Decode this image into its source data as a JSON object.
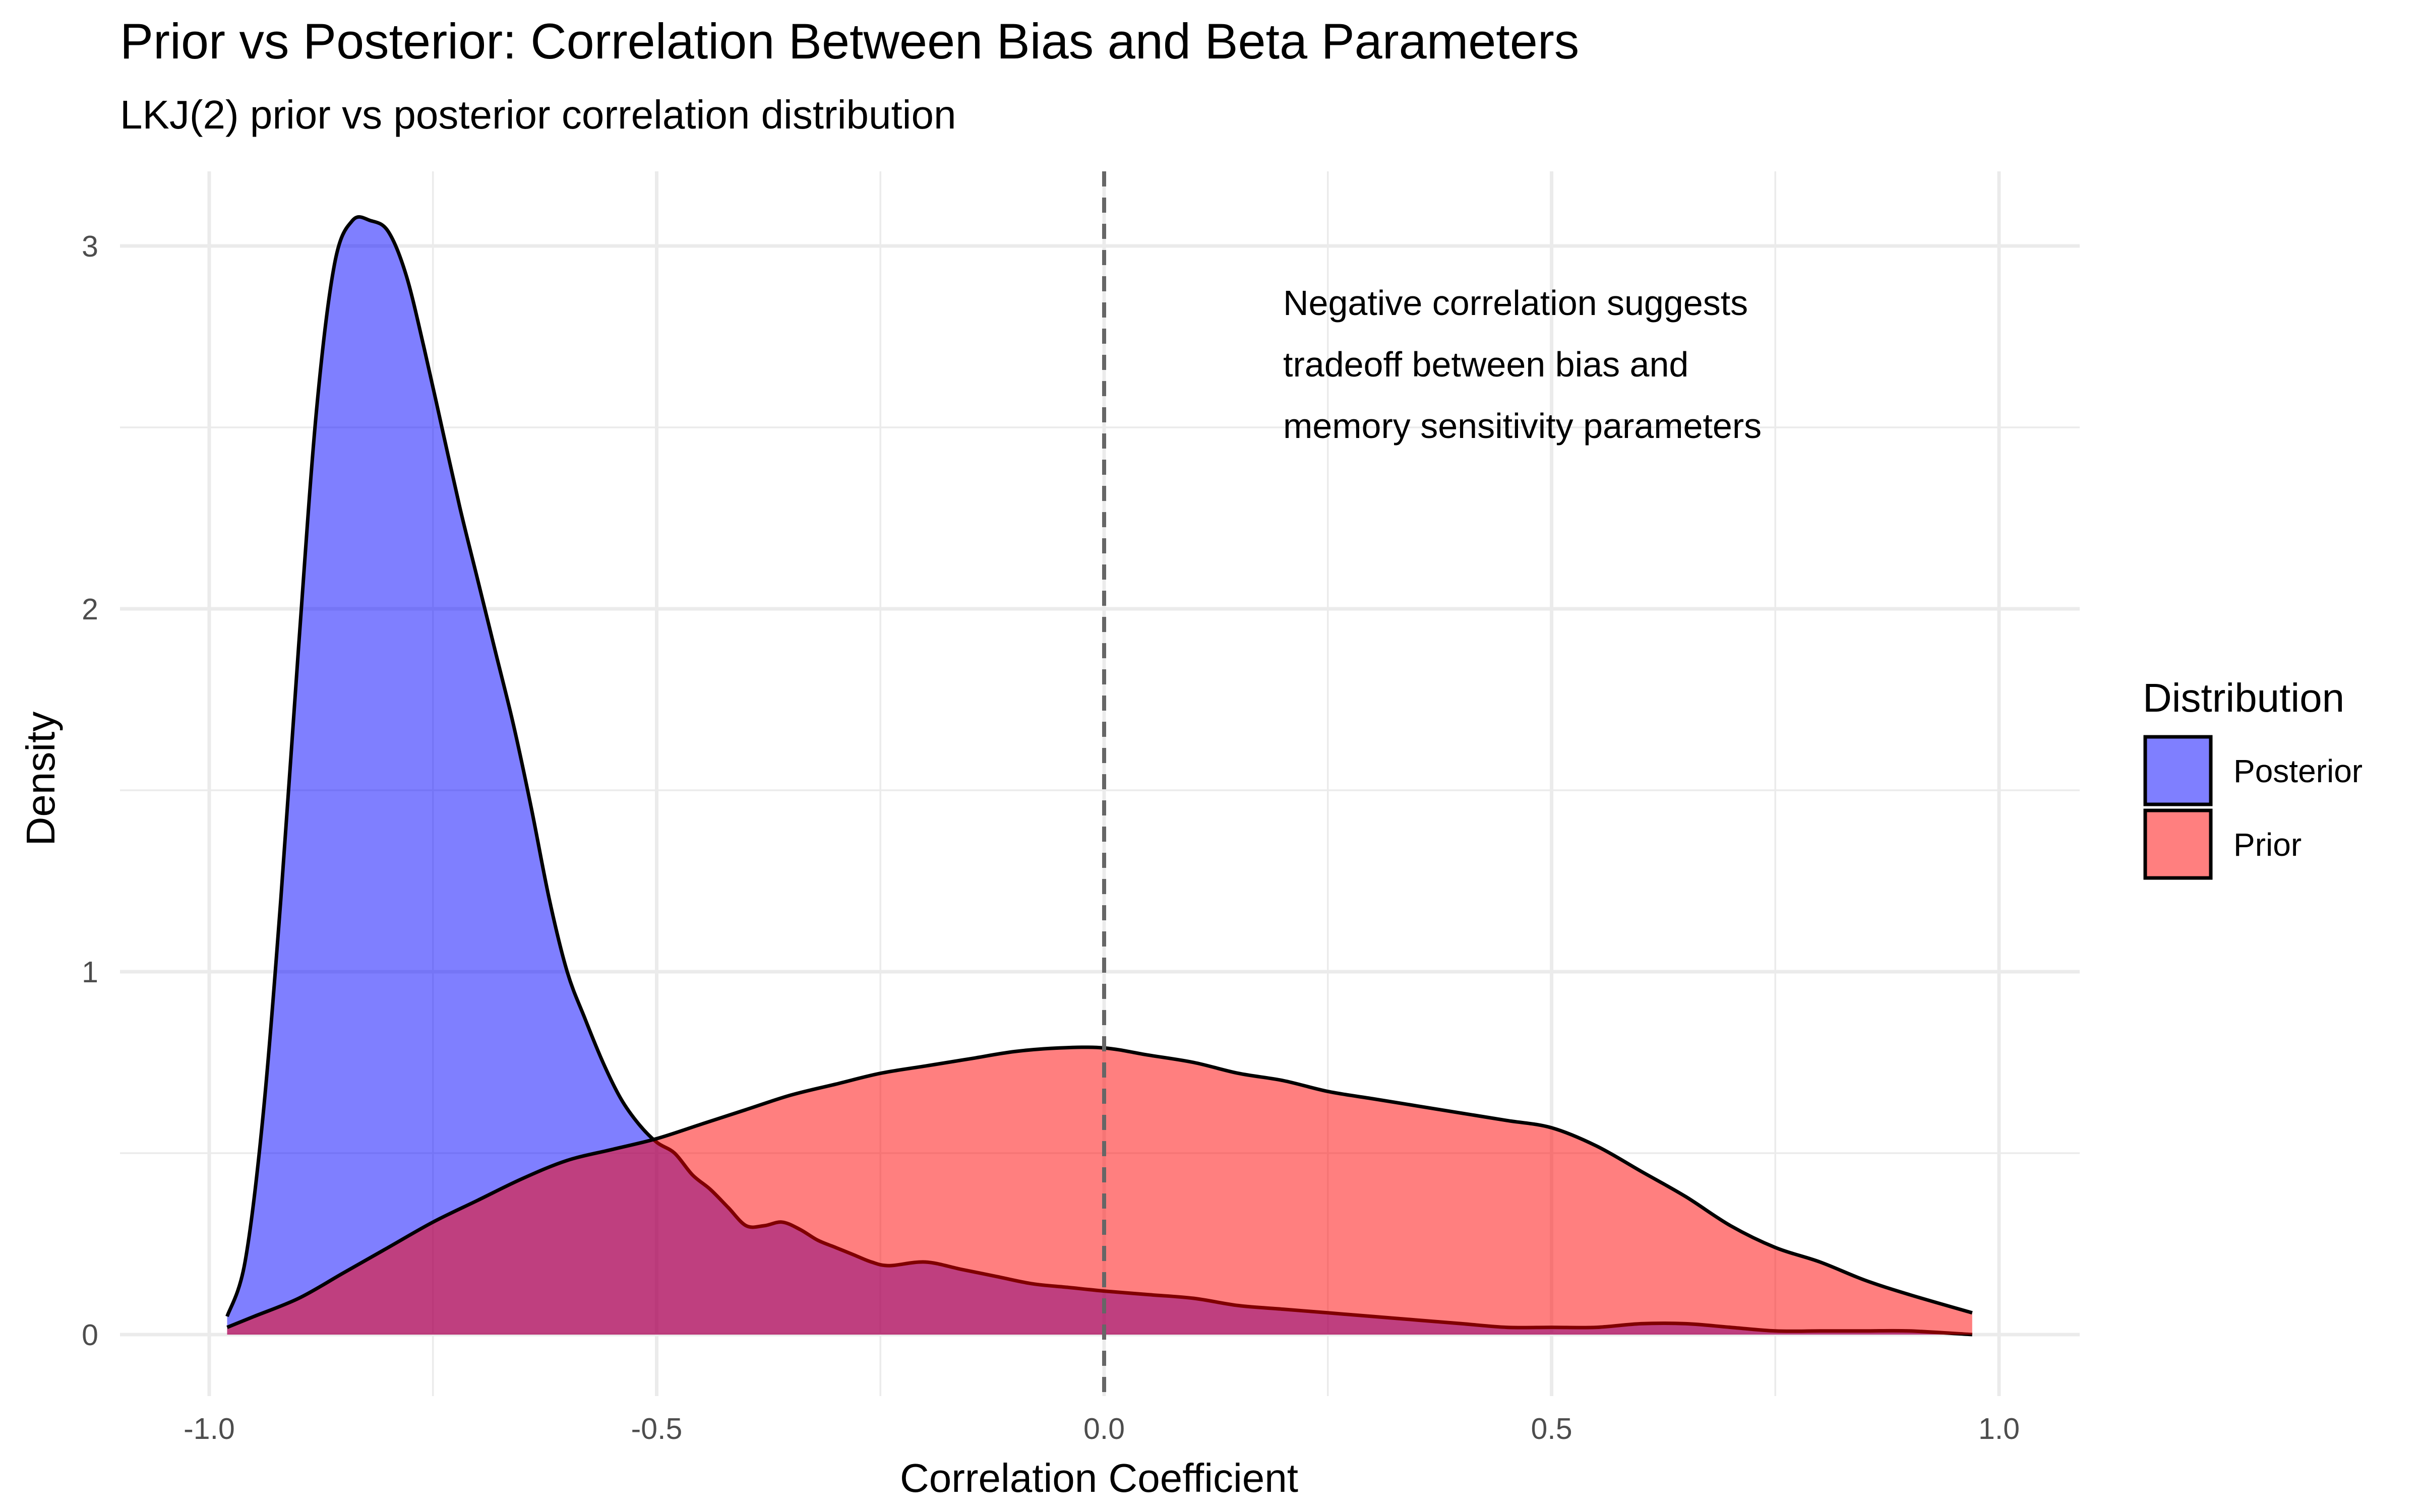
{
  "chart_data": {
    "type": "area",
    "title": "Prior vs Posterior: Correlation Between Bias and Beta Parameters",
    "subtitle": "LKJ(2) prior vs posterior correlation distribution",
    "xlabel": "Correlation Coefficient",
    "ylabel": "Density",
    "xlim": [
      -1.0,
      1.0
    ],
    "ylim": [
      0,
      3.1
    ],
    "x_ticks": [
      -1.0,
      -0.5,
      0.0,
      0.5,
      1.0
    ],
    "x_tick_labels": [
      "-1.0",
      "-0.5",
      "0.0",
      "0.5",
      "1.0"
    ],
    "y_ticks": [
      0,
      1,
      2,
      3
    ],
    "y_tick_labels": [
      "0",
      "1",
      "2",
      "3"
    ],
    "grid": true,
    "reference_line": {
      "x": 0.0,
      "style": "dashed",
      "color": "#666666"
    },
    "annotation": {
      "lines": [
        "Negative correlation suggests",
        "tradeoff between bias and",
        "memory sensitivity parameters"
      ],
      "x": 0.2,
      "y": 2.75
    },
    "legend": {
      "title": "Distribution",
      "position": "right"
    },
    "series": [
      {
        "name": "Posterior",
        "color": "#0000ff",
        "opacity": 0.5,
        "x": [
          -0.98,
          -0.96,
          -0.94,
          -0.92,
          -0.9,
          -0.88,
          -0.86,
          -0.84,
          -0.82,
          -0.8,
          -0.78,
          -0.76,
          -0.74,
          -0.72,
          -0.7,
          -0.68,
          -0.66,
          -0.64,
          -0.62,
          -0.6,
          -0.58,
          -0.56,
          -0.54,
          -0.52,
          -0.5,
          -0.48,
          -0.46,
          -0.44,
          -0.42,
          -0.4,
          -0.38,
          -0.36,
          -0.34,
          -0.32,
          -0.3,
          -0.28,
          -0.26,
          -0.24,
          -0.2,
          -0.16,
          -0.12,
          -0.08,
          -0.04,
          0.0,
          0.05,
          0.1,
          0.15,
          0.2,
          0.25,
          0.3,
          0.35,
          0.4,
          0.45,
          0.5,
          0.55,
          0.6,
          0.65,
          0.7,
          0.75,
          0.8,
          0.85,
          0.9,
          0.97
        ],
        "values": [
          0.05,
          0.2,
          0.6,
          1.2,
          1.9,
          2.55,
          2.95,
          3.07,
          3.07,
          3.04,
          2.92,
          2.72,
          2.5,
          2.28,
          2.08,
          1.88,
          1.68,
          1.45,
          1.2,
          1.0,
          0.87,
          0.75,
          0.65,
          0.58,
          0.53,
          0.5,
          0.44,
          0.4,
          0.35,
          0.3,
          0.3,
          0.31,
          0.29,
          0.26,
          0.24,
          0.22,
          0.2,
          0.19,
          0.2,
          0.18,
          0.16,
          0.14,
          0.13,
          0.12,
          0.11,
          0.1,
          0.08,
          0.07,
          0.06,
          0.05,
          0.04,
          0.03,
          0.02,
          0.02,
          0.02,
          0.03,
          0.03,
          0.02,
          0.01,
          0.01,
          0.01,
          0.01,
          0.0
        ]
      },
      {
        "name": "Prior",
        "color": "#ff0000",
        "opacity": 0.5,
        "x": [
          -0.98,
          -0.95,
          -0.9,
          -0.85,
          -0.8,
          -0.75,
          -0.7,
          -0.65,
          -0.6,
          -0.55,
          -0.5,
          -0.45,
          -0.4,
          -0.35,
          -0.3,
          -0.25,
          -0.2,
          -0.15,
          -0.1,
          -0.05,
          0.0,
          0.05,
          0.1,
          0.15,
          0.2,
          0.25,
          0.3,
          0.35,
          0.4,
          0.45,
          0.5,
          0.55,
          0.6,
          0.65,
          0.7,
          0.75,
          0.8,
          0.85,
          0.9,
          0.97
        ],
        "values": [
          0.02,
          0.05,
          0.1,
          0.17,
          0.24,
          0.31,
          0.37,
          0.43,
          0.48,
          0.51,
          0.54,
          0.58,
          0.62,
          0.66,
          0.69,
          0.72,
          0.74,
          0.76,
          0.78,
          0.79,
          0.79,
          0.77,
          0.75,
          0.72,
          0.7,
          0.67,
          0.65,
          0.63,
          0.61,
          0.59,
          0.57,
          0.52,
          0.45,
          0.38,
          0.3,
          0.24,
          0.2,
          0.15,
          0.11,
          0.06
        ]
      }
    ]
  }
}
